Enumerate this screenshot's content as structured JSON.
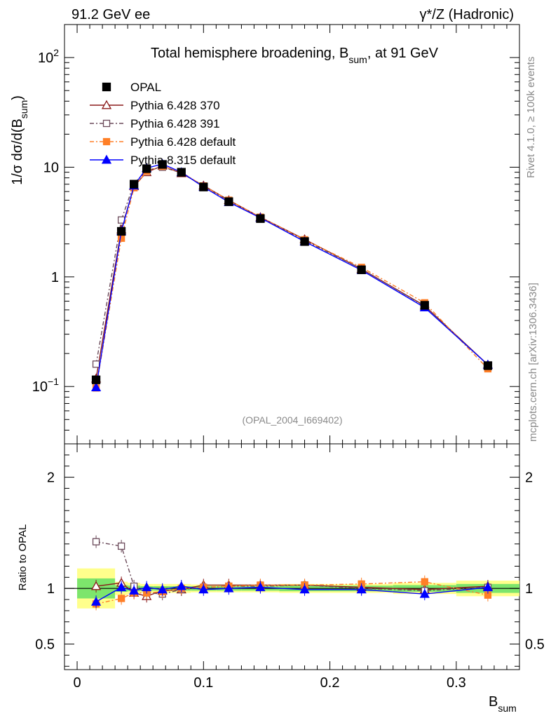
{
  "header": {
    "left_label": "91.2 GeV ee",
    "right_label": "γ*/Z (Hadronic)"
  },
  "side_labels": {
    "rivet": "Rivet 4.1.0, ≥ 100k events",
    "mcplots": "mcplots.cern.ch [arXiv:1306.3436]"
  },
  "chart_data": {
    "type": "line",
    "title_main": "Total hemisphere broadening, B",
    "title_sub": "sum",
    "title_tail": ", at 91 GeV",
    "analysis_id": "(OPAL_2004_I669402)",
    "ylabel_main": "1/σ  dσ/d(B",
    "ylabel_sub": "sum",
    "ylabel_tail": ")",
    "ratio_ylabel": "Ratio to OPAL",
    "xlabel_main": "B",
    "xlabel_sub": "sum",
    "xlim": [
      -0.01,
      0.35
    ],
    "ylim_main": [
      0.03,
      200
    ],
    "ylim_ratio": [
      0.27,
      2.3
    ],
    "x_ticks": [
      {
        "value": 0,
        "label": "0"
      },
      {
        "value": 0.1,
        "label": "0.1"
      },
      {
        "value": 0.2,
        "label": "0.2"
      },
      {
        "value": 0.3,
        "label": "0.3"
      }
    ],
    "y_ticks_main": [
      {
        "value": 0.1,
        "base": "10",
        "exp": "−1"
      },
      {
        "value": 1,
        "base": "1",
        "exp": ""
      },
      {
        "value": 10,
        "base": "10",
        "exp": ""
      },
      {
        "value": 100,
        "base": "10",
        "exp": "2"
      }
    ],
    "y_ticks_ratio": [
      {
        "value": 0.5,
        "label": "0.5"
      },
      {
        "value": 1,
        "label": "1"
      },
      {
        "value": 2,
        "label": "2"
      }
    ],
    "bin_edges": [
      0,
      0.03,
      0.04,
      0.05,
      0.06,
      0.075,
      0.09,
      0.11,
      0.13,
      0.16,
      0.2,
      0.25,
      0.3,
      0.35
    ],
    "x": [
      0.015,
      0.035,
      0.045,
      0.055,
      0.0675,
      0.0825,
      0.1,
      0.12,
      0.145,
      0.18,
      0.225,
      0.275,
      0.325
    ],
    "data": {
      "name": "OPAL",
      "values": [
        0.115,
        2.6,
        7.0,
        9.7,
        10.6,
        9.0,
        6.6,
        4.85,
        3.4,
        2.1,
        1.16,
        0.55,
        0.155
      ],
      "band_inner": [
        0.09,
        0.03,
        0.025,
        0.02,
        0.02,
        0.02,
        0.02,
        0.02,
        0.02,
        0.025,
        0.025,
        0.03,
        0.04
      ],
      "band_outer": [
        0.18,
        0.06,
        0.05,
        0.04,
        0.04,
        0.04,
        0.035,
        0.035,
        0.035,
        0.04,
        0.04,
        0.05,
        0.07
      ]
    },
    "series": [
      {
        "name": "Pythia 6.428 370",
        "color": "#8b1a1a",
        "marker": "triangle-open",
        "dash": "",
        "values": [
          0.118,
          2.7,
          6.7,
          9.0,
          10.3,
          8.8,
          6.8,
          5.0,
          3.5,
          2.2,
          1.18,
          0.545,
          0.158
        ],
        "ratio": [
          1.02,
          1.05,
          0.96,
          0.93,
          0.98,
          0.99,
          1.03,
          1.03,
          1.03,
          1.03,
          1.01,
          0.99,
          1.02
        ]
      },
      {
        "name": "Pythia 6.428 391",
        "color": "#6b4a5a",
        "marker": "square-open",
        "dash": "6,3,2,3",
        "values": [
          0.16,
          3.3,
          7.1,
          9.4,
          10.0,
          8.9,
          6.75,
          4.9,
          3.45,
          2.15,
          1.18,
          0.54,
          0.157
        ],
        "ratio": [
          1.42,
          1.38,
          1.02,
          0.96,
          0.95,
          0.99,
          1.01,
          1.02,
          1.02,
          1.03,
          1.0,
          0.98,
          1.01
        ]
      },
      {
        "name": "Pythia 6.428 default",
        "color": "#ff7f27",
        "marker": "square-filled",
        "dash": "6,3,2,3",
        "values": [
          0.097,
          2.25,
          6.5,
          9.2,
          10.2,
          9.0,
          6.75,
          5.0,
          3.5,
          2.18,
          1.22,
          0.58,
          0.145
        ],
        "ratio": [
          0.86,
          0.91,
          0.96,
          0.96,
          0.97,
          1.0,
          1.01,
          1.02,
          1.03,
          1.03,
          1.04,
          1.06,
          0.94
        ]
      },
      {
        "name": "Pythia 8.315 default",
        "color": "#0000ff",
        "marker": "triangle-filled",
        "dash": "",
        "values": [
          0.098,
          2.6,
          6.8,
          9.8,
          10.7,
          9.0,
          6.6,
          4.8,
          3.45,
          2.1,
          1.15,
          0.525,
          0.158
        ],
        "ratio": [
          0.88,
          1.01,
          0.98,
          1.01,
          0.99,
          1.02,
          0.99,
          1.0,
          1.01,
          0.99,
          0.99,
          0.95,
          1.01
        ]
      }
    ]
  }
}
